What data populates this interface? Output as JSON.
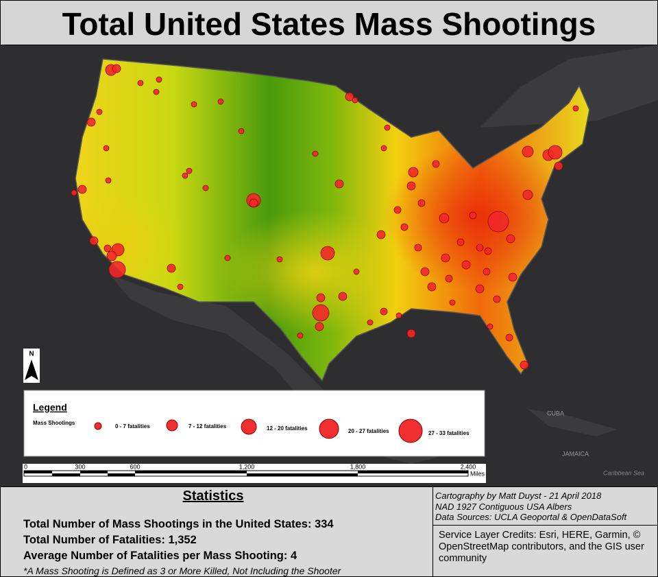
{
  "header": {
    "title": "Total United States Mass Shootings"
  },
  "map": {
    "labels": [
      "CUBA",
      "JAMAICA",
      "Caribbean Sea"
    ],
    "north_arrow": "N"
  },
  "legend": {
    "title": "Legend",
    "layer": "Mass Shootings",
    "classes": [
      "0 - 7 fatalities",
      "7 - 12 fatalities",
      "12 - 20 fatalities",
      "20 - 27 fatalities",
      "27 - 33 fatalities"
    ]
  },
  "scale_bar": {
    "labels": [
      "0",
      "300",
      "600",
      "1,200",
      "1,800",
      "2,400"
    ],
    "unit": "Miles"
  },
  "statistics": {
    "title": "Statistics",
    "lines": [
      "Total Number of Mass Shootings in the United States: 334",
      "Total Number of Fatalities: 1,352",
      "Average Number of Fatalities per Mass Shooting: 4"
    ],
    "footnote": "*A Mass Shooting is Defined as 3 or More Killed, Not Including the Shooter"
  },
  "credits": {
    "cartography": [
      "Cartography by Matt Duyst - 21 April 2018",
      "NAD 1927 Contiguous USA Albers",
      "Data Sources: UCLA Geoportal & OpenDataSoft"
    ],
    "service_layer": "Service Layer Credits: Esri, HERE, Garmin, © OpenStreetMap contributors, and the GIS user community"
  }
}
